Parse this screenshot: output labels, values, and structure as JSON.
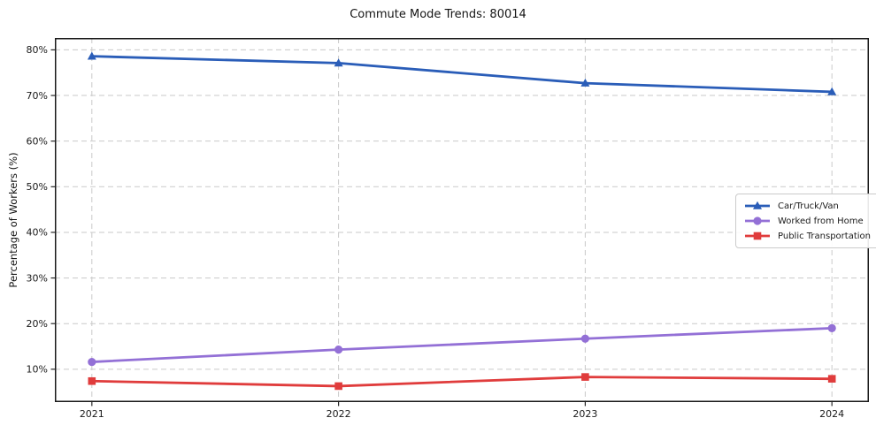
{
  "chart_data": {
    "type": "line",
    "title": "Commute Mode Trends: 80014",
    "xlabel": "",
    "ylabel": "Percentage of Workers (%)",
    "x": [
      2021,
      2022,
      2023,
      2024
    ],
    "series": [
      {
        "name": "Car/Truck/Van",
        "color": "#2a5db8",
        "marker": "triangle",
        "values": [
          78.6,
          77.1,
          72.7,
          70.8
        ]
      },
      {
        "name": "Worked from Home",
        "color": "#9370d6",
        "marker": "circle",
        "values": [
          11.6,
          14.3,
          16.7,
          19.0
        ]
      },
      {
        "name": "Public Transportation",
        "color": "#e03c3c",
        "marker": "square",
        "values": [
          7.4,
          6.3,
          8.3,
          7.9
        ]
      }
    ],
    "yticks": [
      10,
      20,
      30,
      40,
      50,
      60,
      70,
      80
    ],
    "ytick_suffix": "%",
    "ylim": [
      2.8,
      82.6
    ],
    "xlim": [
      2020.85,
      2024.15
    ],
    "grid": true,
    "grid_style": "dashed",
    "legend_position": "right-center"
  }
}
